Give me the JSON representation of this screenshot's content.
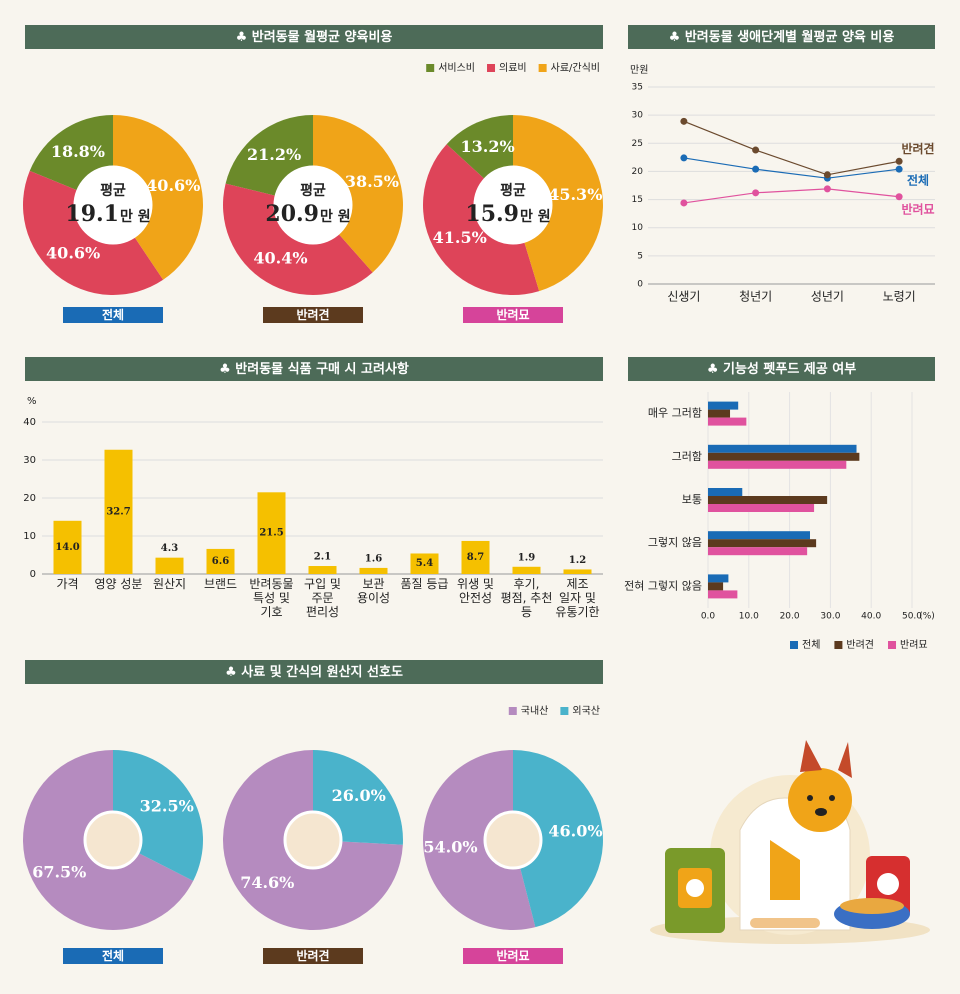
{
  "chart_data": [
    {
      "type": "pie",
      "title": "♣ 반려동물 월평균 양육비용",
      "counterclockwise": true,
      "categories": [
        "전체",
        "반려견",
        "반려묘"
      ],
      "category_colors": [
        "#1a6bb5",
        "#5c3a1e",
        "#d6449a"
      ],
      "center_label": "평균",
      "averages": [
        19.1,
        20.9,
        15.9
      ],
      "unit": "만 원",
      "series": [
        {
          "name": "서비스비",
          "color": "#6b8a2a",
          "values": [
            18.8,
            21.2,
            13.2
          ],
          "value_labels": [
            "18.8%",
            "21.2%",
            "13.2%"
          ]
        },
        {
          "name": "의료비",
          "color": "#de4459",
          "values": [
            40.6,
            40.4,
            41.5
          ],
          "value_labels": [
            "40.6%",
            "40.4%",
            "41.5%"
          ]
        },
        {
          "name": "사료/간식비",
          "color": "#f0a418",
          "values": [
            40.6,
            38.5,
            45.3
          ],
          "value_labels": [
            "40.6%",
            "38.5%",
            "45.3%"
          ]
        }
      ]
    },
    {
      "type": "line",
      "title": "♣ 반려동물 생애단계별 월평균 양육 비용",
      "ylabel": "만원",
      "categories": [
        "신생기",
        "청년기",
        "성년기",
        "노령기"
      ],
      "ylim": [
        0,
        35
      ],
      "yticks": [
        0,
        5,
        10,
        15,
        20,
        25,
        30,
        35
      ],
      "grid": true,
      "series": [
        {
          "name": "전체",
          "color": "#1a6bb5",
          "values": [
            22.4,
            20.4,
            18.8,
            20.4
          ]
        },
        {
          "name": "반려견",
          "color": "#6b4a2e",
          "values": [
            28.9,
            23.8,
            19.4,
            21.8
          ]
        },
        {
          "name": "반려묘",
          "color": "#e0529e",
          "values": [
            14.4,
            16.2,
            16.9,
            15.5
          ]
        }
      ]
    },
    {
      "type": "bar",
      "title": "♣ 반려동물 식품 구매 시 고려사항",
      "ylabel": "%",
      "color": "#f5c000",
      "categories": [
        "가격",
        "영양 성분",
        "원산지",
        "브랜드",
        "반려동물\n특성 및\n기호",
        "구입 및\n주문\n편리성",
        "보관\n용이성",
        "품질 등급",
        "위생 및\n안전성",
        "후기,\n평점, 추천\n등",
        "제조\n일자 및\n유통기한"
      ],
      "values": [
        14.0,
        32.7,
        4.3,
        6.6,
        21.5,
        2.1,
        1.6,
        5.4,
        8.7,
        1.9,
        1.2
      ],
      "value_labels": [
        "14.0",
        "32.7",
        "4.3",
        "6.6",
        "21.5",
        "2.1",
        "1.6",
        "5.4",
        "8.7",
        "1.9",
        "1.2"
      ],
      "ylim": [
        0,
        40
      ],
      "yticks": [
        0,
        10,
        20,
        30,
        40
      ],
      "grid": true
    },
    {
      "type": "barh",
      "title": "♣ 기능성 펫푸드 제공 여부",
      "xlabel": "(%)",
      "categories": [
        "매우 그러함",
        "그러함",
        "보통",
        "그렇지 않음",
        "전혀 그렇지 않음"
      ],
      "xlim": [
        0,
        50
      ],
      "xticks": [
        {
          "value": 0,
          "label": "0.0"
        },
        {
          "value": 10,
          "label": "10.0"
        },
        {
          "value": 20,
          "label": "20.0"
        },
        {
          "value": 30,
          "label": "30.0"
        },
        {
          "value": 40,
          "label": "40.0"
        },
        {
          "value": 50,
          "label": "50.0"
        }
      ],
      "grid": true,
      "series": [
        {
          "name": "전체",
          "color": "#1a6bb5",
          "values": [
            7.4,
            36.4,
            8.4,
            25.0,
            5.0
          ]
        },
        {
          "name": "반려견",
          "color": "#5c3a1e",
          "values": [
            5.4,
            37.1,
            29.2,
            26.5,
            3.7
          ]
        },
        {
          "name": "반려묘",
          "color": "#e0529e",
          "values": [
            9.4,
            33.9,
            26.0,
            24.3,
            7.2
          ]
        }
      ]
    },
    {
      "type": "pie",
      "title": "♣ 사료 및 간식의 원산지 선호도",
      "counterclockwise": true,
      "categories": [
        "전체",
        "반려견",
        "반려묘"
      ],
      "category_colors": [
        "#1a6bb5",
        "#5c3a1e",
        "#d6449a"
      ],
      "series": [
        {
          "name": "국내산",
          "color": "#b58bbf",
          "values": [
            67.5,
            74.6,
            54.0
          ],
          "value_labels": [
            "67.5%",
            "74.6%",
            "54.0%"
          ]
        },
        {
          "name": "외국산",
          "color": "#4ab3cb",
          "values": [
            32.5,
            26.0,
            46.0
          ],
          "value_labels": [
            "32.5%",
            "26.0%",
            "46.0%"
          ]
        }
      ]
    }
  ]
}
